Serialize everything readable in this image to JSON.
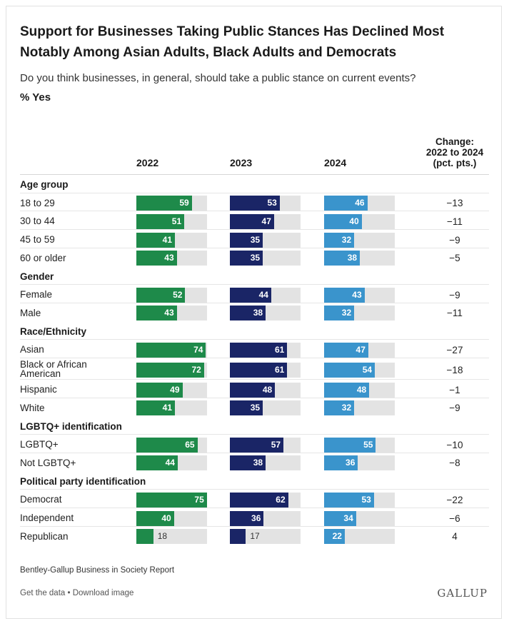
{
  "title": "Support for Businesses Taking Public Stances Has Declined Most Notably Among Asian Adults, Black Adults and Democrats",
  "subtitle": "Do you think businesses, in general, should take a public stance on current events?",
  "measure": "% Yes",
  "columns": [
    "2022",
    "2023",
    "2024"
  ],
  "change_header": [
    "Change:",
    "2022 to 2024",
    "(pct. pts.)"
  ],
  "colors": {
    "2022": "#1e8a4a",
    "2023": "#1a2566",
    "2024": "#3a94cc",
    "track": "#e3e3e3"
  },
  "chart_data": {
    "type": "bar",
    "title": "Support for Businesses Taking Public Stances Has Declined Most Notably Among Asian Adults, Black Adults and Democrats",
    "subtitle": "Do you think businesses, in general, should take a public stance on current events?",
    "measure": "% Yes",
    "xlim": [
      0,
      100
    ],
    "series_names": [
      "2022",
      "2023",
      "2024"
    ],
    "groups": [
      {
        "name": "Age group",
        "rows": [
          {
            "label": "18 to 29",
            "values": [
              59,
              53,
              46
            ],
            "change": "−13"
          },
          {
            "label": "30 to 44",
            "values": [
              51,
              47,
              40
            ],
            "change": "−11"
          },
          {
            "label": "45 to 59",
            "values": [
              41,
              35,
              32
            ],
            "change": "−9"
          },
          {
            "label": "60 or older",
            "values": [
              43,
              35,
              38
            ],
            "change": "−5"
          }
        ]
      },
      {
        "name": "Gender",
        "rows": [
          {
            "label": "Female",
            "values": [
              52,
              44,
              43
            ],
            "change": "−9"
          },
          {
            "label": "Male",
            "values": [
              43,
              38,
              32
            ],
            "change": "−11"
          }
        ]
      },
      {
        "name": "Race/Ethnicity",
        "rows": [
          {
            "label": "Asian",
            "values": [
              74,
              61,
              47
            ],
            "change": "−27"
          },
          {
            "label": "Black or African American",
            "values": [
              72,
              61,
              54
            ],
            "change": "−18"
          },
          {
            "label": "Hispanic",
            "values": [
              49,
              48,
              48
            ],
            "change": "−1"
          },
          {
            "label": "White",
            "values": [
              41,
              35,
              32
            ],
            "change": "−9"
          }
        ]
      },
      {
        "name": "LGBTQ+ identification",
        "rows": [
          {
            "label": "LGBTQ+",
            "values": [
              65,
              57,
              55
            ],
            "change": "−10"
          },
          {
            "label": "Not LGBTQ+",
            "values": [
              44,
              38,
              36
            ],
            "change": "−8"
          }
        ]
      },
      {
        "name": "Political party identification",
        "rows": [
          {
            "label": "Democrat",
            "values": [
              75,
              62,
              53
            ],
            "change": "−22"
          },
          {
            "label": "Independent",
            "values": [
              40,
              36,
              34
            ],
            "change": "−6"
          },
          {
            "label": "Republican",
            "values": [
              18,
              17,
              22
            ],
            "change": "4"
          }
        ]
      }
    ]
  },
  "source": "Bentley-Gallup Business in Society Report",
  "footer": {
    "get_data": "Get the data",
    "separator": " • ",
    "download": "Download image"
  },
  "logo": "GALLUP"
}
